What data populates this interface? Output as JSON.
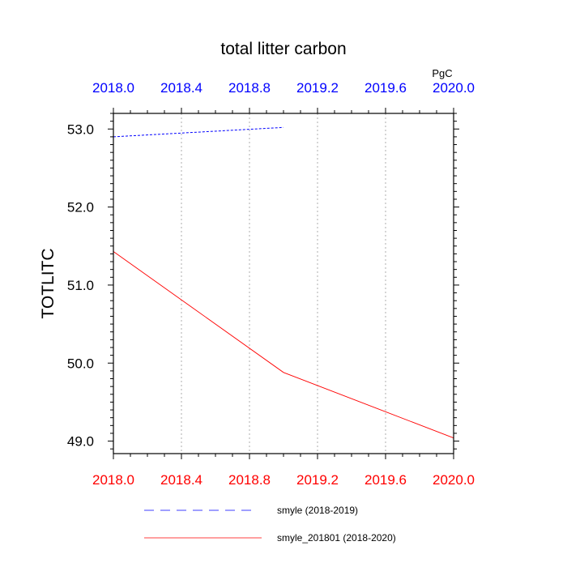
{
  "chart_data": {
    "type": "line",
    "title": "total litter carbon",
    "units": "PgC",
    "ylabel": "TOTLITC",
    "xlabel": "",
    "xlim": [
      2018.0,
      2020.0
    ],
    "ylim": [
      48.84,
      53.2
    ],
    "x_ticks_bottom": [
      "2018.0",
      "2018.4",
      "2018.8",
      "2019.2",
      "2019.6",
      "2020.0"
    ],
    "x_ticks_top": [
      "2018.0",
      "2018.4",
      "2018.8",
      "2019.2",
      "2019.6",
      "2020.0"
    ],
    "y_ticks": [
      "49.0",
      "50.0",
      "51.0",
      "52.0",
      "53.0"
    ],
    "grid": "vertical dotted",
    "legend_position": "bottom",
    "series": [
      {
        "name": "smyle (2018-2019)",
        "color": "#0000ff",
        "style": "dashed",
        "axis": "top",
        "x": [
          2018.0,
          2019.0
        ],
        "y": [
          52.9,
          53.02
        ]
      },
      {
        "name": "smyle_201801 (2018-2020)",
        "color": "#ff0000",
        "style": "solid",
        "axis": "bottom",
        "x": [
          2018.0,
          2019.0,
          2020.0
        ],
        "y": [
          51.43,
          49.88,
          49.04
        ]
      }
    ]
  }
}
